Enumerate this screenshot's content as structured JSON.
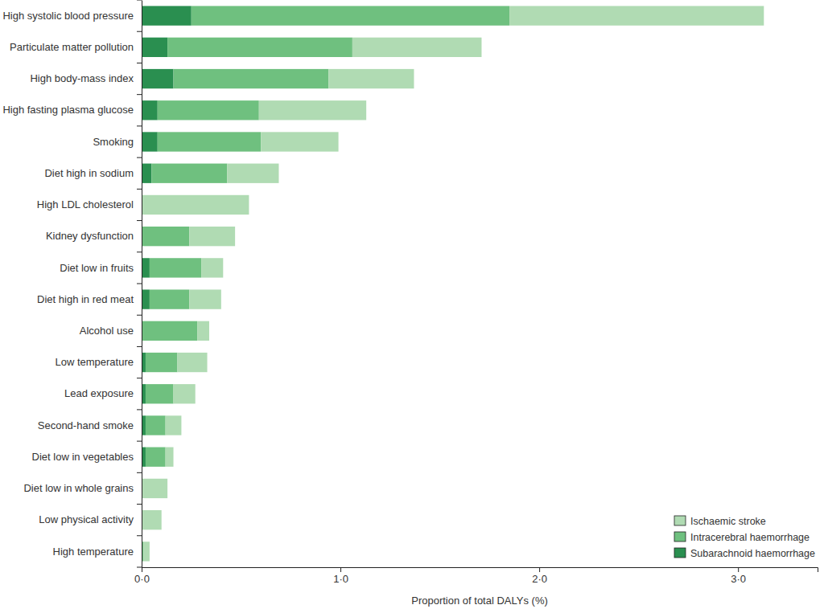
{
  "chart_data": {
    "type": "bar",
    "orientation": "horizontal",
    "stacked": true,
    "grid": false,
    "legend": "lower right",
    "x_label": "Proportion of total DALYs (%)",
    "categories": [
      "High systolic blood pressure",
      "Particulate matter pollution",
      "High body-mass index",
      "High fasting plasma glucose",
      "Smoking",
      "Diet high in sodium",
      "High LDL cholesterol",
      "Kidney dysfunction",
      "Diet low in fruits",
      "Diet high in red meat",
      "Alcohol use",
      "Low temperature",
      "Lead exposure",
      "Second-hand smoke",
      "Diet low in vegetables",
      "Diet low in whole grains",
      "Low physical activity",
      "High temperature"
    ],
    "series": [
      {
        "name": "Ischaemic stroke",
        "color": "#b0dbb3",
        "values": [
          1.28,
          0.65,
          0.43,
          0.54,
          0.39,
          0.26,
          0.54,
          0.23,
          0.11,
          0.16,
          0.06,
          0.15,
          0.11,
          0.08,
          0.04,
          0.13,
          0.1,
          0.03
        ]
      },
      {
        "name": "Intracerebral haemorrhage",
        "color": "#6fc07f",
        "values": [
          1.6,
          0.93,
          0.78,
          0.51,
          0.52,
          0.38,
          0,
          0.24,
          0.26,
          0.2,
          0.28,
          0.16,
          0.14,
          0.1,
          0.1,
          0,
          0,
          0.01
        ]
      },
      {
        "name": "Subarachnoid haemorrhage",
        "color": "#2a8f50",
        "values": [
          0.25,
          0.13,
          0.16,
          0.08,
          0.08,
          0.05,
          0,
          0,
          0.04,
          0.04,
          0,
          0.02,
          0.02,
          0.02,
          0.02,
          0,
          0,
          0
        ]
      }
    ],
    "xlim": [
      0,
      3.4
    ],
    "xticks": [
      {
        "value": 0,
        "label": "0·0"
      },
      {
        "value": 1,
        "label": "1·0"
      },
      {
        "value": 2,
        "label": "2·0"
      },
      {
        "value": 3,
        "label": "3·0"
      }
    ]
  }
}
